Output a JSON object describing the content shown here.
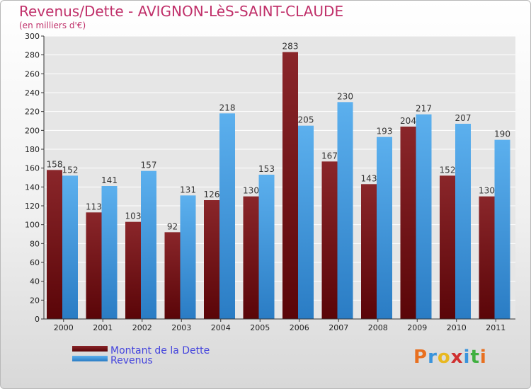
{
  "chart_data": {
    "type": "bar",
    "title": "Revenus/Dette - AVIGNON-LèS-SAINT-CLAUDE",
    "subtitle": "(en milliers d'€)",
    "categories": [
      "2000",
      "2001",
      "2002",
      "2003",
      "2004",
      "2005",
      "2006",
      "2007",
      "2008",
      "2009",
      "2010",
      "2011"
    ],
    "series": [
      {
        "name": "Montant de la Dette",
        "color": "#7a1418",
        "values": [
          158,
          113,
          103,
          92,
          126,
          130,
          283,
          167,
          143,
          204,
          152,
          130
        ]
      },
      {
        "name": "Revenus",
        "color": "#3a94dc",
        "values": [
          152,
          141,
          157,
          131,
          218,
          153,
          205,
          230,
          193,
          217,
          207,
          190
        ]
      }
    ],
    "ylim": [
      0,
      300
    ],
    "yticks": [
      0,
      20,
      40,
      60,
      80,
      100,
      120,
      140,
      160,
      180,
      200,
      220,
      240,
      260,
      280,
      300
    ],
    "grid": true,
    "legend": "bottom-left",
    "legend_text_color": "#4444dd"
  },
  "logo": {
    "letters": [
      {
        "ch": "P",
        "color": "#e87020"
      },
      {
        "ch": "r",
        "color": "#3a94dc"
      },
      {
        "ch": "o",
        "color": "#e8b820"
      },
      {
        "ch": "x",
        "color": "#d03030"
      },
      {
        "ch": "i",
        "color": "#3a94dc"
      },
      {
        "ch": "t",
        "color": "#40b040"
      },
      {
        "ch": "i",
        "color": "#e87020"
      }
    ]
  }
}
